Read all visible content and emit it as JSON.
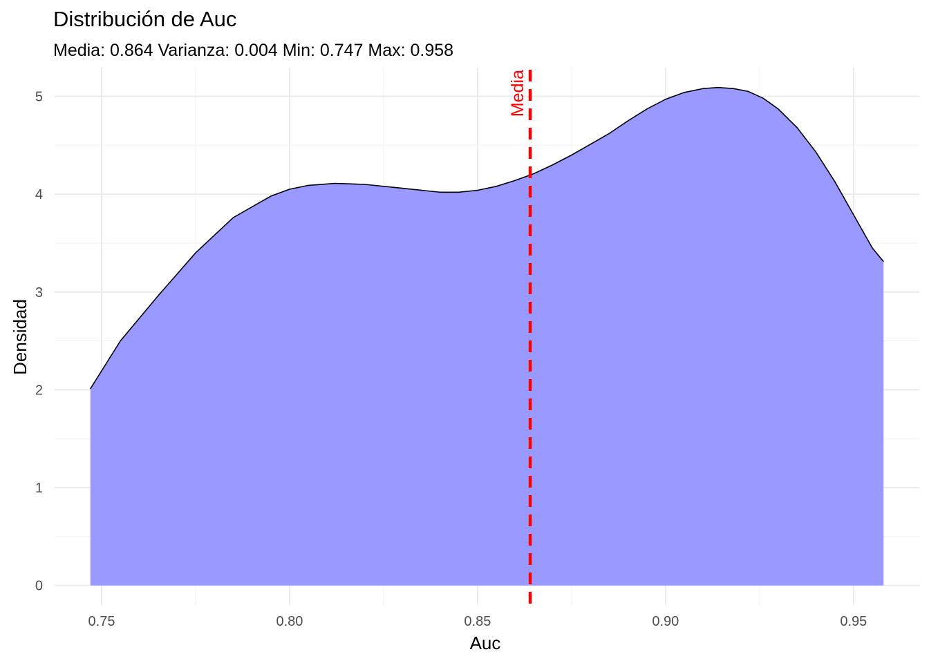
{
  "chart_data": {
    "type": "area",
    "title": "Distribución de Auc",
    "subtitle": "Media: 0.864 Varianza: 0.004 Min: 0.747 Max: 0.958",
    "xlabel": "Auc",
    "ylabel": "Densidad",
    "xlim": [
      0.7375,
      0.9675
    ],
    "ylim": [
      -0.2,
      5.3
    ],
    "x_ticks": [
      0.75,
      0.8,
      0.85,
      0.9,
      0.95
    ],
    "x_tick_labels": [
      "0.75",
      "0.80",
      "0.85",
      "0.90",
      "0.95"
    ],
    "y_ticks": [
      0,
      1,
      2,
      3,
      4,
      5
    ],
    "y_tick_labels": [
      "0",
      "1",
      "2",
      "3",
      "4",
      "5"
    ],
    "grid": true,
    "fill_color": "#9999ff",
    "line_color": "#000000",
    "series": [
      {
        "x": [
          0.747,
          0.755,
          0.765,
          0.775,
          0.785,
          0.795,
          0.8,
          0.805,
          0.812,
          0.82,
          0.83,
          0.84,
          0.845,
          0.85,
          0.855,
          0.86,
          0.865,
          0.87,
          0.875,
          0.88,
          0.885,
          0.89,
          0.895,
          0.9,
          0.905,
          0.91,
          0.914,
          0.918,
          0.922,
          0.926,
          0.93,
          0.935,
          0.94,
          0.945,
          0.95,
          0.955,
          0.958
        ],
        "y": [
          2.01,
          2.5,
          2.96,
          3.4,
          3.76,
          3.98,
          4.05,
          4.09,
          4.11,
          4.1,
          4.06,
          4.02,
          4.02,
          4.04,
          4.08,
          4.14,
          4.21,
          4.3,
          4.4,
          4.51,
          4.62,
          4.75,
          4.87,
          4.97,
          5.04,
          5.08,
          5.09,
          5.08,
          5.05,
          4.98,
          4.87,
          4.68,
          4.43,
          4.13,
          3.79,
          3.45,
          3.31
        ]
      }
    ],
    "reference_line": {
      "x": 0.864,
      "label": "Media",
      "color": "#ff0000",
      "style": "dashed"
    }
  }
}
